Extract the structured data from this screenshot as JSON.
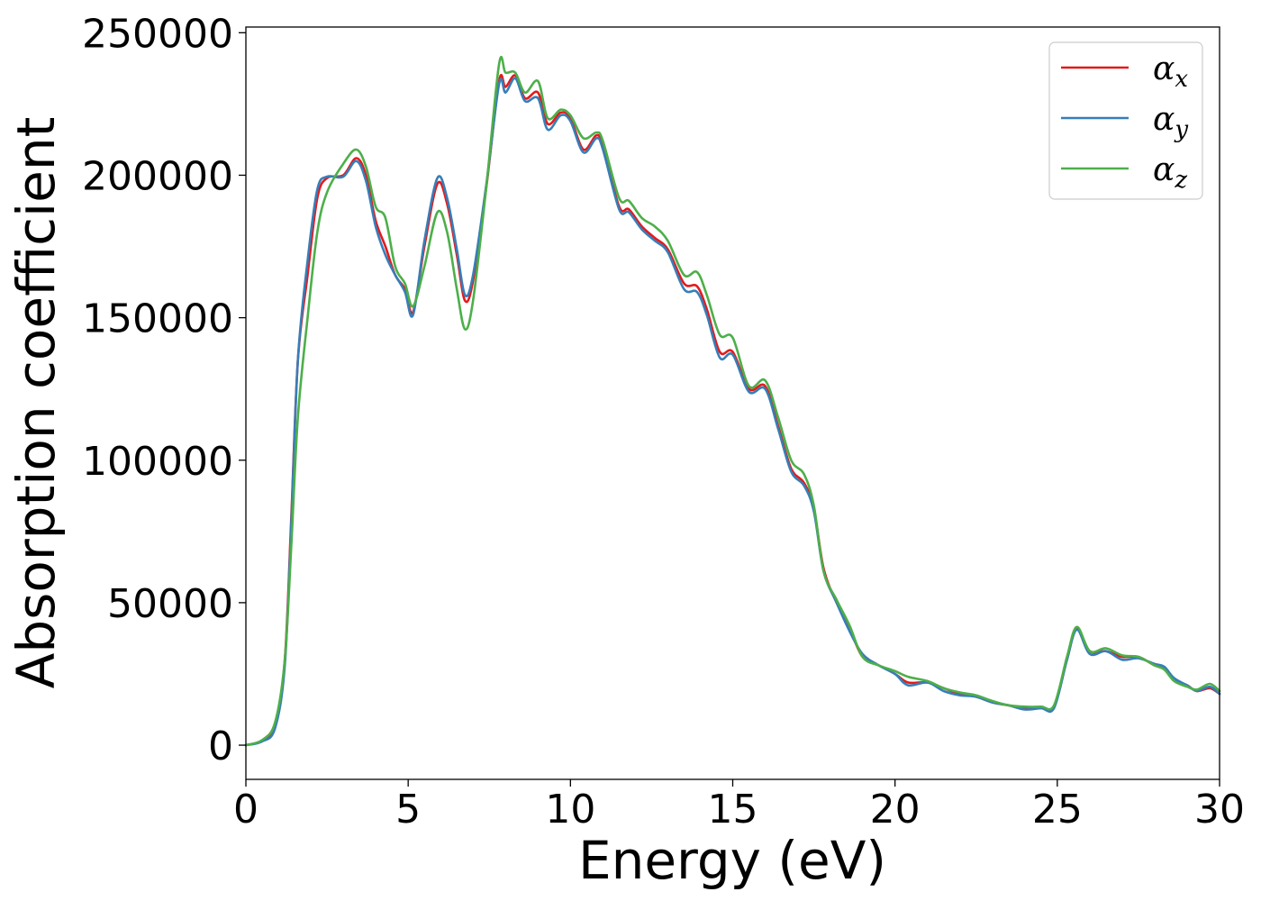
{
  "chart_data": {
    "type": "line",
    "xlabel": "Energy (eV)",
    "ylabel": "Absorption coefficient",
    "xlim": [
      0,
      30
    ],
    "ylim": [
      -12000,
      252000
    ],
    "x_ticks": [
      0,
      5,
      10,
      15,
      20,
      25,
      30
    ],
    "y_ticks": [
      0,
      50000,
      100000,
      150000,
      200000,
      250000
    ],
    "x_tick_labels": [
      "0",
      "5",
      "10",
      "15",
      "20",
      "25",
      "30"
    ],
    "y_tick_labels": [
      "0",
      "50000",
      "100000",
      "150000",
      "200000",
      "250000"
    ],
    "grid": false,
    "legend_position": "top-right",
    "series": [
      {
        "name": "α_x",
        "symbol": "α",
        "subscript": "x",
        "color": "#e41a1c",
        "points": [
          [
            0,
            0
          ],
          [
            0.5,
            1500
          ],
          [
            0.9,
            7000
          ],
          [
            1.2,
            30000
          ],
          [
            1.4,
            80000
          ],
          [
            1.6,
            135000
          ],
          [
            1.9,
            165000
          ],
          [
            2.2,
            192000
          ],
          [
            2.5,
            199000
          ],
          [
            3.0,
            200000
          ],
          [
            3.4,
            206000
          ],
          [
            3.7,
            200000
          ],
          [
            4.0,
            184000
          ],
          [
            4.3,
            175000
          ],
          [
            4.6,
            165000
          ],
          [
            4.9,
            160000
          ],
          [
            5.15,
            152000
          ],
          [
            5.5,
            175000
          ],
          [
            5.9,
            197000
          ],
          [
            6.2,
            190000
          ],
          [
            6.5,
            172000
          ],
          [
            6.75,
            156000
          ],
          [
            7.0,
            163000
          ],
          [
            7.4,
            195000
          ],
          [
            7.8,
            233000
          ],
          [
            8.0,
            231000
          ],
          [
            8.3,
            235000
          ],
          [
            8.6,
            227000
          ],
          [
            9.0,
            229000
          ],
          [
            9.3,
            218000
          ],
          [
            9.7,
            222000
          ],
          [
            10.0,
            220000
          ],
          [
            10.4,
            209000
          ],
          [
            10.8,
            214000
          ],
          [
            11.0,
            210000
          ],
          [
            11.5,
            189000
          ],
          [
            11.8,
            188000
          ],
          [
            12.2,
            182000
          ],
          [
            12.6,
            178000
          ],
          [
            13.0,
            174000
          ],
          [
            13.5,
            162000
          ],
          [
            13.9,
            161000
          ],
          [
            14.2,
            153000
          ],
          [
            14.6,
            138000
          ],
          [
            15.0,
            138000
          ],
          [
            15.5,
            125000
          ],
          [
            16.0,
            126000
          ],
          [
            16.4,
            112000
          ],
          [
            16.8,
            97000
          ],
          [
            17.2,
            92000
          ],
          [
            17.5,
            83000
          ],
          [
            17.8,
            62000
          ],
          [
            18.2,
            50000
          ],
          [
            18.6,
            41000
          ],
          [
            19.0,
            31000
          ],
          [
            19.5,
            28000
          ],
          [
            20.0,
            25000
          ],
          [
            20.4,
            22000
          ],
          [
            21.0,
            22000
          ],
          [
            21.5,
            20000
          ],
          [
            22.0,
            18000
          ],
          [
            22.5,
            17000
          ],
          [
            23.0,
            15000
          ],
          [
            23.5,
            14000
          ],
          [
            24.0,
            13000
          ],
          [
            24.5,
            13000
          ],
          [
            24.9,
            13500
          ],
          [
            25.3,
            30000
          ],
          [
            25.6,
            41000
          ],
          [
            26.0,
            33000
          ],
          [
            26.5,
            33000
          ],
          [
            27.0,
            31000
          ],
          [
            27.5,
            31000
          ],
          [
            28.0,
            28000
          ],
          [
            28.3,
            27000
          ],
          [
            28.6,
            23000
          ],
          [
            29.0,
            21000
          ],
          [
            29.3,
            19000
          ],
          [
            29.7,
            20000
          ],
          [
            30.0,
            18000
          ]
        ]
      },
      {
        "name": "α_y",
        "symbol": "α",
        "subscript": "y",
        "color": "#377eb8",
        "points": [
          [
            0,
            0
          ],
          [
            0.5,
            1300
          ],
          [
            0.9,
            6000
          ],
          [
            1.2,
            28000
          ],
          [
            1.4,
            78000
          ],
          [
            1.6,
            135000
          ],
          [
            1.9,
            170000
          ],
          [
            2.2,
            195000
          ],
          [
            2.5,
            199500
          ],
          [
            3.0,
            199500
          ],
          [
            3.4,
            205000
          ],
          [
            3.7,
            198000
          ],
          [
            4.0,
            182000
          ],
          [
            4.3,
            172000
          ],
          [
            4.6,
            165000
          ],
          [
            4.9,
            159000
          ],
          [
            5.15,
            151000
          ],
          [
            5.5,
            177000
          ],
          [
            5.9,
            199000
          ],
          [
            6.2,
            192000
          ],
          [
            6.5,
            174000
          ],
          [
            6.75,
            158000
          ],
          [
            7.0,
            165000
          ],
          [
            7.4,
            196000
          ],
          [
            7.8,
            232000
          ],
          [
            8.0,
            229000
          ],
          [
            8.3,
            234000
          ],
          [
            8.6,
            226000
          ],
          [
            9.0,
            227000
          ],
          [
            9.3,
            216000
          ],
          [
            9.7,
            221000
          ],
          [
            10.0,
            219000
          ],
          [
            10.4,
            208000
          ],
          [
            10.8,
            213000
          ],
          [
            11.0,
            209000
          ],
          [
            11.5,
            188000
          ],
          [
            11.8,
            187000
          ],
          [
            12.2,
            181000
          ],
          [
            12.6,
            177000
          ],
          [
            13.0,
            173000
          ],
          [
            13.5,
            160000
          ],
          [
            13.9,
            159000
          ],
          [
            14.2,
            151000
          ],
          [
            14.6,
            136000
          ],
          [
            15.0,
            137000
          ],
          [
            15.5,
            124000
          ],
          [
            16.0,
            125000
          ],
          [
            16.4,
            111000
          ],
          [
            16.8,
            96000
          ],
          [
            17.2,
            91000
          ],
          [
            17.5,
            82000
          ],
          [
            17.8,
            61000
          ],
          [
            18.2,
            50000
          ],
          [
            18.6,
            40000
          ],
          [
            19.0,
            32000
          ],
          [
            19.5,
            28000
          ],
          [
            20.0,
            25000
          ],
          [
            20.4,
            21000
          ],
          [
            21.0,
            22000
          ],
          [
            21.5,
            19000
          ],
          [
            22.0,
            17500
          ],
          [
            22.5,
            17000
          ],
          [
            23.0,
            15000
          ],
          [
            23.5,
            14000
          ],
          [
            24.0,
            12500
          ],
          [
            24.5,
            13000
          ],
          [
            24.9,
            13000
          ],
          [
            25.3,
            30000
          ],
          [
            25.6,
            40500
          ],
          [
            26.0,
            32000
          ],
          [
            26.5,
            33000
          ],
          [
            27.0,
            30000
          ],
          [
            27.5,
            30500
          ],
          [
            28.0,
            28500
          ],
          [
            28.3,
            27500
          ],
          [
            28.6,
            23500
          ],
          [
            29.0,
            21000
          ],
          [
            29.3,
            19000
          ],
          [
            29.7,
            20500
          ],
          [
            30.0,
            18000
          ]
        ]
      },
      {
        "name": "α_z",
        "symbol": "α",
        "subscript": "z",
        "color": "#4daf4a",
        "points": [
          [
            0,
            0
          ],
          [
            0.5,
            1800
          ],
          [
            0.9,
            8000
          ],
          [
            1.2,
            30000
          ],
          [
            1.4,
            70000
          ],
          [
            1.6,
            115000
          ],
          [
            1.9,
            150000
          ],
          [
            2.2,
            180000
          ],
          [
            2.5,
            194000
          ],
          [
            3.0,
            204000
          ],
          [
            3.4,
            209000
          ],
          [
            3.7,
            203000
          ],
          [
            4.0,
            189000
          ],
          [
            4.3,
            185000
          ],
          [
            4.6,
            168000
          ],
          [
            4.9,
            162000
          ],
          [
            5.15,
            154000
          ],
          [
            5.5,
            168000
          ],
          [
            5.9,
            187000
          ],
          [
            6.2,
            180000
          ],
          [
            6.5,
            160000
          ],
          [
            6.75,
            146000
          ],
          [
            7.0,
            156000
          ],
          [
            7.4,
            195000
          ],
          [
            7.8,
            239000
          ],
          [
            8.0,
            236000
          ],
          [
            8.3,
            236000
          ],
          [
            8.6,
            229000
          ],
          [
            9.0,
            233000
          ],
          [
            9.3,
            220000
          ],
          [
            9.7,
            223000
          ],
          [
            10.0,
            221000
          ],
          [
            10.4,
            213000
          ],
          [
            10.8,
            215000
          ],
          [
            11.0,
            212000
          ],
          [
            11.5,
            192000
          ],
          [
            11.8,
            191000
          ],
          [
            12.2,
            185000
          ],
          [
            12.6,
            182000
          ],
          [
            13.0,
            177000
          ],
          [
            13.5,
            165000
          ],
          [
            13.9,
            166000
          ],
          [
            14.2,
            158000
          ],
          [
            14.6,
            144000
          ],
          [
            15.0,
            143000
          ],
          [
            15.5,
            126000
          ],
          [
            16.0,
            128000
          ],
          [
            16.4,
            115000
          ],
          [
            16.8,
            100000
          ],
          [
            17.2,
            95000
          ],
          [
            17.5,
            84000
          ],
          [
            17.8,
            61000
          ],
          [
            18.2,
            51000
          ],
          [
            18.6,
            42000
          ],
          [
            19.0,
            31000
          ],
          [
            19.5,
            28000
          ],
          [
            20.0,
            26000
          ],
          [
            20.4,
            24000
          ],
          [
            21.0,
            22500
          ],
          [
            21.5,
            20000
          ],
          [
            22.0,
            18500
          ],
          [
            22.5,
            17500
          ],
          [
            23.0,
            15500
          ],
          [
            23.5,
            14000
          ],
          [
            24.0,
            13500
          ],
          [
            24.5,
            13500
          ],
          [
            24.9,
            14000
          ],
          [
            25.3,
            31000
          ],
          [
            25.6,
            41500
          ],
          [
            26.0,
            33000
          ],
          [
            26.5,
            34000
          ],
          [
            27.0,
            31500
          ],
          [
            27.5,
            31000
          ],
          [
            28.0,
            28000
          ],
          [
            28.3,
            26500
          ],
          [
            28.6,
            22500
          ],
          [
            29.0,
            20500
          ],
          [
            29.3,
            19500
          ],
          [
            29.7,
            21500
          ],
          [
            30.0,
            19000
          ]
        ]
      }
    ]
  }
}
